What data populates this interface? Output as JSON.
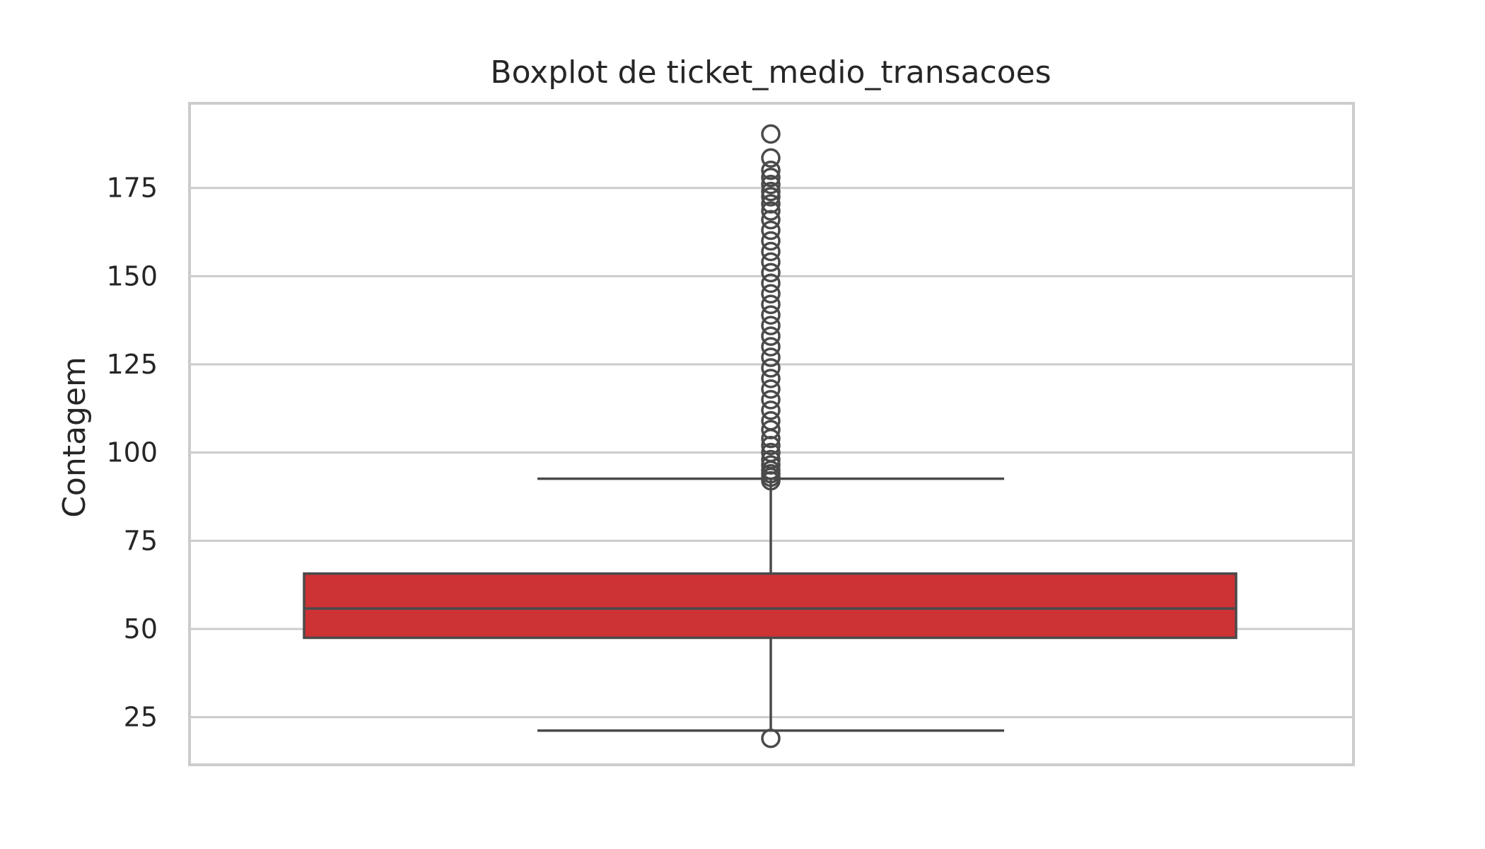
{
  "chart_data": {
    "type": "boxplot",
    "title": "Boxplot de ticket_medio_transacoes",
    "xlabel": "",
    "ylabel": "Contagem",
    "ylim": [
      11.5,
      199
    ],
    "yticks": [
      25,
      50,
      75,
      100,
      125,
      150,
      175
    ],
    "grid": true,
    "box": {
      "q1": 47.5,
      "median": 55.8,
      "q3": 65.7,
      "whisker_low": 21.2,
      "whisker_high": 92.6,
      "color": "#cd3235",
      "line_color": "#4a4a4a"
    },
    "outliers": [
      19.0,
      92.0,
      93.0,
      94.0,
      95.0,
      96.5,
      98.0,
      100.0,
      102.0,
      104.0,
      106.5,
      109.0,
      112.0,
      115.0,
      118.0,
      121.0,
      124.0,
      127.0,
      130.0,
      133.0,
      136.0,
      139.0,
      142.0,
      145.0,
      148.0,
      151.0,
      154.0,
      157.0,
      160.0,
      163.0,
      166.0,
      168.5,
      170.5,
      172.5,
      174.0,
      176.0,
      178.0,
      180.0,
      183.5,
      190.3
    ]
  }
}
